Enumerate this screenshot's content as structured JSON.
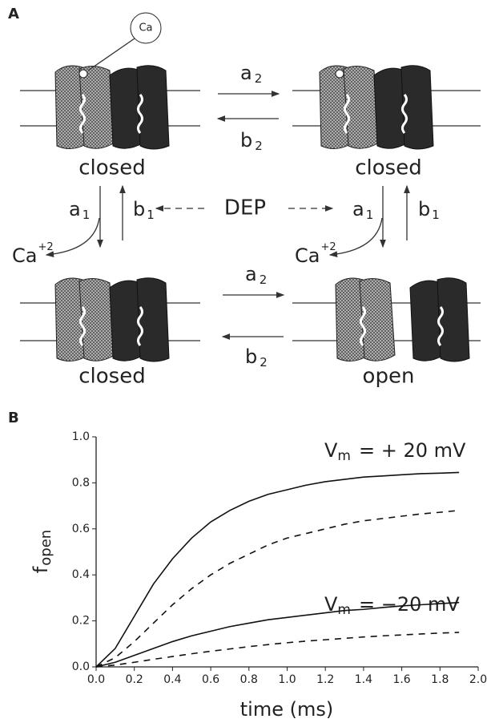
{
  "panel_a": {
    "panel_label": "A",
    "ca_marker": "Ca",
    "states": [
      "closed",
      "closed",
      "closed",
      "open"
    ],
    "top_forward": {
      "main": "a",
      "sub": "2"
    },
    "top_backward": {
      "main": "b",
      "sub": "2"
    },
    "bottom_forward": {
      "main": "a",
      "sub": "2"
    },
    "bottom_backward": {
      "main": "b",
      "sub": "2"
    },
    "left_down": {
      "main": "a",
      "sub": "1"
    },
    "left_up": {
      "main": "b",
      "sub": "1"
    },
    "right_down": {
      "main": "a",
      "sub": "1"
    },
    "right_up": {
      "main": "b",
      "sub": "1"
    },
    "center": "DEP",
    "ion_left": {
      "main": "Ca",
      "sup": "+2"
    },
    "ion_right": {
      "main": "Ca",
      "sup": "+2"
    }
  },
  "chart_data": {
    "type": "line",
    "panel_label": "B",
    "y_label": {
      "main": "f",
      "sub": "open"
    },
    "x_label": "time (ms)",
    "annotations": [
      {
        "main": "V",
        "sub": "m",
        "text": "= + 20 mV"
      },
      {
        "main": "V",
        "sub": "m",
        "text": "= −20 mV"
      }
    ],
    "x": [
      0,
      0.1,
      0.2,
      0.3,
      0.4,
      0.5,
      0.6,
      0.7,
      0.8,
      0.9,
      1.0,
      1.1,
      1.2,
      1.3,
      1.4,
      1.5,
      1.6,
      1.7,
      1.8,
      1.9
    ],
    "series": [
      {
        "color": "#111111",
        "dash": false,
        "values": [
          0,
          0.08,
          0.22,
          0.36,
          0.47,
          0.56,
          0.63,
          0.68,
          0.72,
          0.75,
          0.77,
          0.79,
          0.805,
          0.815,
          0.825,
          0.83,
          0.835,
          0.84,
          0.842,
          0.845
        ]
      },
      {
        "color": "#111111",
        "dash": true,
        "values": [
          0,
          0.04,
          0.11,
          0.19,
          0.27,
          0.34,
          0.4,
          0.45,
          0.49,
          0.53,
          0.56,
          0.58,
          0.6,
          0.62,
          0.635,
          0.645,
          0.655,
          0.665,
          0.672,
          0.68
        ]
      },
      {
        "color": "#111111",
        "dash": false,
        "values": [
          0,
          0.02,
          0.05,
          0.08,
          0.11,
          0.135,
          0.155,
          0.175,
          0.19,
          0.205,
          0.215,
          0.225,
          0.235,
          0.245,
          0.25,
          0.258,
          0.265,
          0.27,
          0.275,
          0.28
        ]
      },
      {
        "color": "#111111",
        "dash": true,
        "values": [
          0,
          0.008,
          0.02,
          0.033,
          0.045,
          0.057,
          0.068,
          0.078,
          0.088,
          0.097,
          0.105,
          0.112,
          0.118,
          0.124,
          0.13,
          0.135,
          0.139,
          0.143,
          0.147,
          0.15
        ]
      }
    ],
    "xlim": [
      0,
      2.0
    ],
    "ylim": [
      0,
      1.0
    ],
    "xticks": [
      {
        "value": 0,
        "label": "0.0"
      },
      {
        "value": 0.2,
        "label": "0.2"
      },
      {
        "value": 0.4,
        "label": "0.4"
      },
      {
        "value": 0.6,
        "label": "0.6"
      },
      {
        "value": 0.8,
        "label": "0.8"
      },
      {
        "value": 1.0,
        "label": "1.0"
      },
      {
        "value": 1.2,
        "label": "1.2"
      },
      {
        "value": 1.4,
        "label": "1.4"
      },
      {
        "value": 1.6,
        "label": "1.6"
      },
      {
        "value": 1.8,
        "label": "1.8"
      },
      {
        "value": 2.0,
        "label": "2.0"
      }
    ],
    "yticks": [
      {
        "value": 0,
        "label": "0.0"
      },
      {
        "value": 0.2,
        "label": "0.2"
      },
      {
        "value": 0.4,
        "label": "0.4"
      },
      {
        "value": 0.6,
        "label": "0.6"
      },
      {
        "value": 0.8,
        "label": "0.8"
      },
      {
        "value": 1.0,
        "label": "1.0"
      }
    ],
    "grid": false
  }
}
